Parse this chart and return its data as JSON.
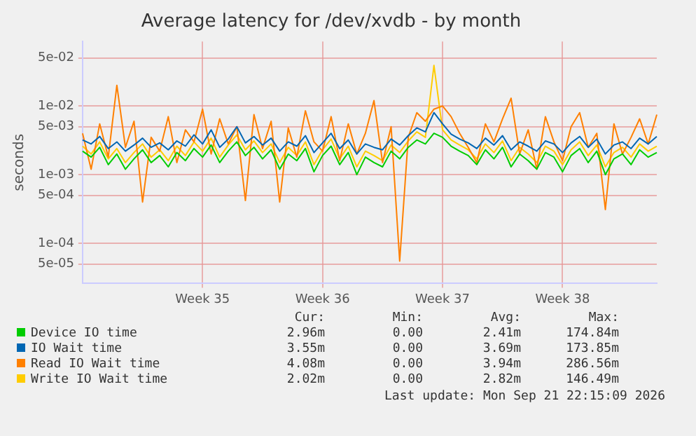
{
  "chart_data": {
    "type": "line",
    "title": "Average latency for /dev/xvdb - by month",
    "ylabel": "seconds",
    "categories": [
      null,
      null,
      null,
      null,
      null,
      null,
      null,
      null,
      null,
      null,
      null,
      null,
      null,
      null,
      "Week 35",
      null,
      null,
      null,
      null,
      null,
      null,
      null,
      null,
      null,
      null,
      null,
      null,
      null,
      "Week 36",
      null,
      null,
      null,
      null,
      null,
      null,
      null,
      null,
      null,
      null,
      null,
      null,
      null,
      "Week 37",
      null,
      null,
      null,
      null,
      null,
      null,
      null,
      null,
      null,
      null,
      null,
      null,
      null,
      "Week 38",
      null,
      null,
      null,
      null,
      null,
      null,
      null,
      null,
      null,
      null,
      null
    ],
    "log": true,
    "ylim": [
      2.6e-05,
      0.087
    ],
    "yticks": [
      {
        "value": 5e-05,
        "label": "5e-05"
      },
      {
        "value": 0.0001,
        "label": "1e-04"
      },
      {
        "value": 0.0005,
        "label": "5e-04"
      },
      {
        "value": 0.001,
        "label": "1e-03"
      },
      {
        "value": 0.005,
        "label": "5e-03"
      },
      {
        "value": 0.01,
        "label": "1e-02"
      },
      {
        "value": 0.05,
        "label": "5e-02"
      }
    ],
    "grid": true,
    "legend": "bottom",
    "marker": "none",
    "line_style": "solid",
    "series": [
      {
        "name": "Device IO time",
        "color": "#00cc00",
        "values": [
          0.0022,
          0.0018,
          0.0025,
          0.0014,
          0.002,
          0.0012,
          0.0017,
          0.0023,
          0.0015,
          0.0019,
          0.0013,
          0.0021,
          0.0016,
          0.0024,
          0.0018,
          0.0027,
          0.0015,
          0.0022,
          0.003,
          0.0019,
          0.0025,
          0.0017,
          0.0023,
          0.0012,
          0.002,
          0.0016,
          0.0024,
          0.0011,
          0.0019,
          0.0026,
          0.0014,
          0.0021,
          0.001,
          0.0018,
          0.0015,
          0.0013,
          0.0022,
          0.0017,
          0.0025,
          0.0032,
          0.0028,
          0.004,
          0.0035,
          0.0026,
          0.0022,
          0.0019,
          0.0014,
          0.0023,
          0.0017,
          0.0025,
          0.0013,
          0.002,
          0.0016,
          0.0012,
          0.0021,
          0.0018,
          0.0011,
          0.0019,
          0.0024,
          0.0015,
          0.0022,
          0.001,
          0.0017,
          0.002,
          0.0014,
          0.0023,
          0.0018,
          0.0021
        ]
      },
      {
        "name": "IO Wait time",
        "color": "#0066b3",
        "values": [
          0.0032,
          0.0028,
          0.0036,
          0.0024,
          0.003,
          0.0022,
          0.0027,
          0.0034,
          0.0025,
          0.0029,
          0.0023,
          0.0031,
          0.0026,
          0.0038,
          0.0028,
          0.0045,
          0.0025,
          0.0033,
          0.005,
          0.0029,
          0.0036,
          0.0027,
          0.0034,
          0.0022,
          0.003,
          0.0026,
          0.0037,
          0.0021,
          0.0029,
          0.004,
          0.0024,
          0.0032,
          0.002,
          0.0028,
          0.0025,
          0.0023,
          0.0033,
          0.0027,
          0.0037,
          0.0048,
          0.0042,
          0.008,
          0.0055,
          0.0039,
          0.0033,
          0.0029,
          0.0024,
          0.0034,
          0.0027,
          0.0037,
          0.0023,
          0.003,
          0.0026,
          0.0022,
          0.0031,
          0.0028,
          0.0021,
          0.0029,
          0.0036,
          0.0025,
          0.0033,
          0.002,
          0.0027,
          0.003,
          0.0024,
          0.0034,
          0.0028,
          0.0036
        ]
      },
      {
        "name": "Read IO Wait time",
        "color": "#ff8000",
        "values": [
          0.004,
          0.0012,
          0.0055,
          0.0018,
          0.02,
          0.0025,
          0.006,
          0.0004,
          0.0035,
          0.0022,
          0.007,
          0.0015,
          0.0045,
          0.003,
          0.009,
          0.002,
          0.0065,
          0.0028,
          0.005,
          0.00042,
          0.0075,
          0.0024,
          0.006,
          0.0004,
          0.0048,
          0.0018,
          0.0085,
          0.003,
          0.0022,
          0.007,
          0.0016,
          0.0055,
          0.002,
          0.004,
          0.012,
          0.0015,
          0.005,
          5.5e-05,
          0.0035,
          0.008,
          0.006,
          0.009,
          0.01,
          0.007,
          0.004,
          0.0025,
          0.0015,
          0.0055,
          0.003,
          0.0065,
          0.013,
          0.002,
          0.0045,
          0.0012,
          0.007,
          0.003,
          0.0016,
          0.005,
          0.008,
          0.0025,
          0.004,
          0.00031,
          0.0055,
          0.002,
          0.0035,
          0.0065,
          0.0028,
          0.0075
        ]
      },
      {
        "name": "Write IO Wait time",
        "color": "#ffcc00",
        "values": [
          0.0026,
          0.002,
          0.003,
          0.0017,
          0.0024,
          0.0015,
          0.0021,
          0.0028,
          0.0018,
          0.0023,
          0.0016,
          0.0026,
          0.0019,
          0.003,
          0.0022,
          0.0034,
          0.0018,
          0.0027,
          0.0038,
          0.0023,
          0.0031,
          0.0021,
          0.0028,
          0.0015,
          0.0025,
          0.0019,
          0.003,
          0.0014,
          0.0023,
          0.0033,
          0.0017,
          0.0026,
          0.0013,
          0.0022,
          0.0019,
          0.0016,
          0.0027,
          0.0021,
          0.0031,
          0.0042,
          0.0035,
          0.039,
          0.0045,
          0.0032,
          0.0027,
          0.0023,
          0.0017,
          0.0028,
          0.0021,
          0.0031,
          0.0016,
          0.0025,
          0.002,
          0.0015,
          0.0026,
          0.0022,
          0.0014,
          0.0023,
          0.003,
          0.0019,
          0.0027,
          0.0013,
          0.0021,
          0.0025,
          0.0018,
          0.0028,
          0.0022,
          0.0026
        ]
      }
    ],
    "annotations": [
      "Cur:",
      "Min:",
      "Avg:",
      "Max:",
      "2.96m",
      "0.00",
      "2.41m",
      "174.84m",
      "3.55m",
      "0.00",
      "3.69m",
      "173.85m",
      "4.08m",
      "0.00",
      "3.94m",
      "286.56m",
      "2.02m",
      "0.00",
      "2.82m",
      "146.49m",
      "Last update: Mon Sep 21 22:15:09 2026"
    ]
  }
}
